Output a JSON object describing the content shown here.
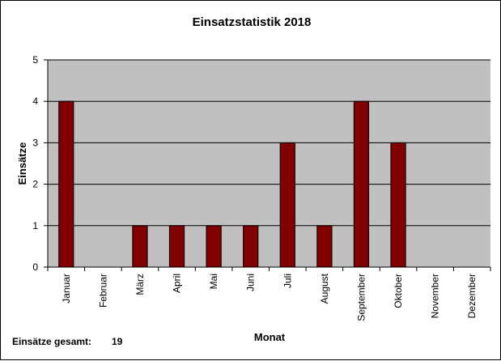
{
  "chart_data": {
    "type": "bar",
    "title": "Einsatzstatistik 2018",
    "xlabel": "Monat",
    "ylabel": "Einsätze",
    "categories": [
      "Januar",
      "Februar",
      "März",
      "April",
      "Mai",
      "Juni",
      "Juli",
      "August",
      "September",
      "Oktober",
      "November",
      "Dezember"
    ],
    "values": [
      4,
      0,
      1,
      1,
      1,
      1,
      3,
      1,
      4,
      3,
      0,
      0
    ],
    "ylim": [
      0,
      5
    ],
    "yticks": [
      0,
      1,
      2,
      3,
      4,
      5
    ],
    "grid": true,
    "legend": "none",
    "colors": {
      "bar": "#800000",
      "plot_background": "#c0c0c0",
      "gridline": "#000000"
    }
  },
  "footer": {
    "total_label": "Einsätze gesamt:",
    "total_value": "19"
  }
}
